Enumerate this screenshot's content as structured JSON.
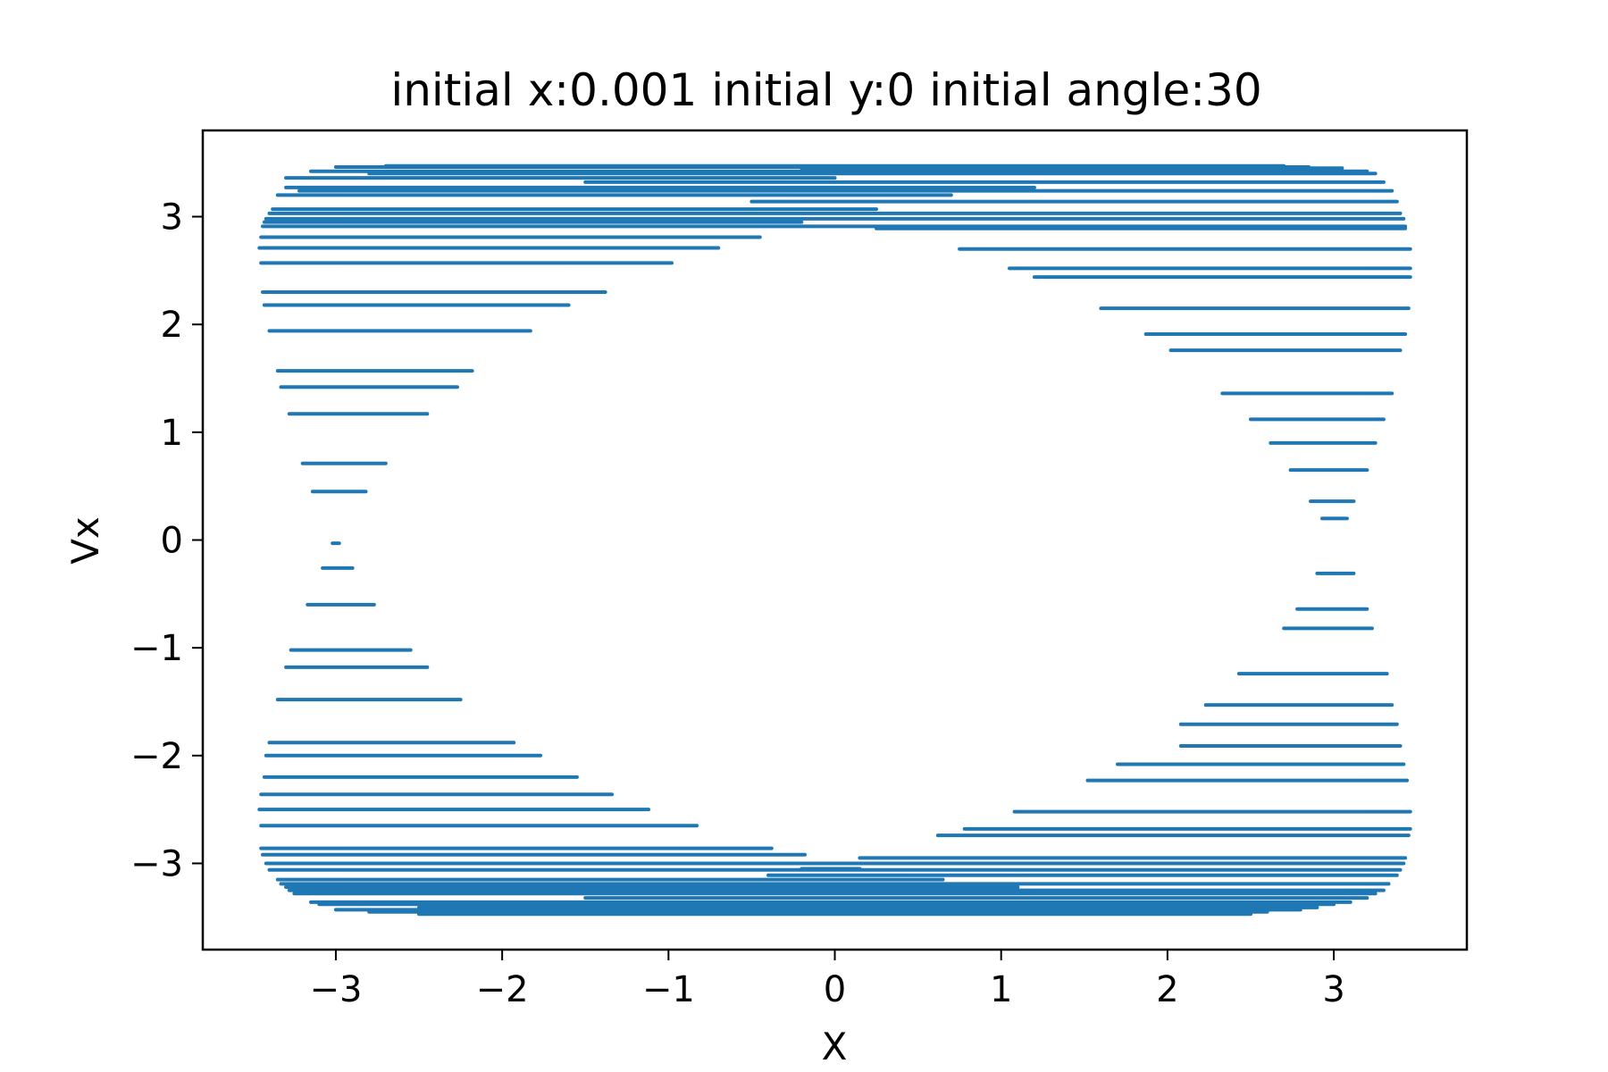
{
  "chart_data": {
    "type": "scatter",
    "title": "initial x:0.001  initial y:0 initial angle:30",
    "xlabel": "X",
    "ylabel": "Vx",
    "xlim": [
      -3.8,
      3.8
    ],
    "ylim": [
      -3.8,
      3.8
    ],
    "xticks": [
      -3,
      -2,
      -1,
      0,
      1,
      2,
      3
    ],
    "xtick_labels": [
      "−3",
      "−2",
      "−1",
      "0",
      "1",
      "2",
      "3"
    ],
    "yticks": [
      -3,
      -2,
      -1,
      0,
      1,
      2,
      3
    ],
    "ytick_labels": [
      "−3",
      "−2",
      "−1",
      "0",
      "1",
      "2",
      "3"
    ],
    "grid": false,
    "legend": "none",
    "series_color": "#1f77b4",
    "segments": [
      {
        "vx": 3.47,
        "x_start": -2.7,
        "x_end": 2.7
      },
      {
        "vx": 3.46,
        "x_start": -3.0,
        "x_end": 2.85
      },
      {
        "vx": 3.45,
        "x_start": -0.2,
        "x_end": 3.05
      },
      {
        "vx": 3.42,
        "x_start": -3.15,
        "x_end": 3.2
      },
      {
        "vx": 3.4,
        "x_start": -2.8,
        "x_end": 3.25
      },
      {
        "vx": 3.36,
        "x_start": -3.3,
        "x_end": 0.0
      },
      {
        "vx": 3.32,
        "x_start": -1.5,
        "x_end": 3.3
      },
      {
        "vx": 3.27,
        "x_start": -3.3,
        "x_end": 1.2
      },
      {
        "vx": 3.24,
        "x_start": -3.22,
        "x_end": 3.35
      },
      {
        "vx": 3.2,
        "x_start": -3.35,
        "x_end": 0.7
      },
      {
        "vx": 3.14,
        "x_start": -0.5,
        "x_end": 3.38
      },
      {
        "vx": 3.07,
        "x_start": -3.38,
        "x_end": 0.25
      },
      {
        "vx": 3.03,
        "x_start": -3.4,
        "x_end": 3.4
      },
      {
        "vx": 2.98,
        "x_start": -3.42,
        "x_end": 3.42
      },
      {
        "vx": 2.95,
        "x_start": -3.43,
        "x_end": -0.2
      },
      {
        "vx": 2.91,
        "x_start": -3.44,
        "x_end": 3.43
      },
      {
        "vx": 2.89,
        "x_start": 0.25,
        "x_end": 3.43
      },
      {
        "vx": 2.81,
        "x_start": -3.45,
        "x_end": -0.45
      },
      {
        "vx": 2.71,
        "x_start": -3.46,
        "x_end": -0.7
      },
      {
        "vx": 2.7,
        "x_start": 0.75,
        "x_end": 3.46
      },
      {
        "vx": 2.57,
        "x_start": -3.45,
        "x_end": -0.98
      },
      {
        "vx": 2.52,
        "x_start": 1.05,
        "x_end": 3.46
      },
      {
        "vx": 2.44,
        "x_start": 1.2,
        "x_end": 3.46
      },
      {
        "vx": 2.3,
        "x_start": -3.44,
        "x_end": -1.38
      },
      {
        "vx": 2.18,
        "x_start": -3.43,
        "x_end": -1.6
      },
      {
        "vx": 2.15,
        "x_start": 1.6,
        "x_end": 3.45
      },
      {
        "vx": 1.94,
        "x_start": -3.4,
        "x_end": -1.83
      },
      {
        "vx": 1.91,
        "x_start": 1.87,
        "x_end": 3.43
      },
      {
        "vx": 1.76,
        "x_start": 2.02,
        "x_end": 3.4
      },
      {
        "vx": 1.57,
        "x_start": -3.35,
        "x_end": -2.18
      },
      {
        "vx": 1.42,
        "x_start": -3.33,
        "x_end": -2.27
      },
      {
        "vx": 1.36,
        "x_start": 2.33,
        "x_end": 3.35
      },
      {
        "vx": 1.17,
        "x_start": -3.28,
        "x_end": -2.45
      },
      {
        "vx": 1.12,
        "x_start": 2.5,
        "x_end": 3.3
      },
      {
        "vx": 0.9,
        "x_start": 2.62,
        "x_end": 3.25
      },
      {
        "vx": 0.71,
        "x_start": -3.2,
        "x_end": -2.7
      },
      {
        "vx": 0.65,
        "x_start": 2.74,
        "x_end": 3.2
      },
      {
        "vx": 0.45,
        "x_start": -3.14,
        "x_end": -2.82
      },
      {
        "vx": 0.36,
        "x_start": 2.86,
        "x_end": 3.12
      },
      {
        "vx": 0.2,
        "x_start": 2.93,
        "x_end": 3.08
      },
      {
        "vx": -0.03,
        "x_start": -3.02,
        "x_end": -2.98
      },
      {
        "vx": -0.26,
        "x_start": -3.08,
        "x_end": -2.9
      },
      {
        "vx": -0.31,
        "x_start": 2.9,
        "x_end": 3.12
      },
      {
        "vx": -0.6,
        "x_start": -3.17,
        "x_end": -2.77
      },
      {
        "vx": -0.64,
        "x_start": 2.78,
        "x_end": 3.2
      },
      {
        "vx": -0.82,
        "x_start": 2.7,
        "x_end": 3.23
      },
      {
        "vx": -1.02,
        "x_start": -3.27,
        "x_end": -2.55
      },
      {
        "vx": -1.18,
        "x_start": -3.3,
        "x_end": -2.45
      },
      {
        "vx": -1.24,
        "x_start": 2.43,
        "x_end": 3.32
      },
      {
        "vx": -1.48,
        "x_start": -3.35,
        "x_end": -2.25
      },
      {
        "vx": -1.53,
        "x_start": 2.23,
        "x_end": 3.35
      },
      {
        "vx": -1.71,
        "x_start": 2.08,
        "x_end": 3.38
      },
      {
        "vx": -1.88,
        "x_start": -3.4,
        "x_end": -1.93
      },
      {
        "vx": -1.91,
        "x_start": 2.08,
        "x_end": 3.4
      },
      {
        "vx": -2.0,
        "x_start": -3.42,
        "x_end": -1.77
      },
      {
        "vx": -2.08,
        "x_start": 1.7,
        "x_end": 3.42
      },
      {
        "vx": -2.2,
        "x_start": -3.43,
        "x_end": -1.55
      },
      {
        "vx": -2.23,
        "x_start": 1.52,
        "x_end": 3.44
      },
      {
        "vx": -2.36,
        "x_start": -3.45,
        "x_end": -1.34
      },
      {
        "vx": -2.5,
        "x_start": -3.46,
        "x_end": -1.12
      },
      {
        "vx": -2.52,
        "x_start": 1.08,
        "x_end": 3.46
      },
      {
        "vx": -2.65,
        "x_start": -3.45,
        "x_end": -0.83
      },
      {
        "vx": -2.68,
        "x_start": 0.78,
        "x_end": 3.46
      },
      {
        "vx": -2.74,
        "x_start": 0.62,
        "x_end": 3.45
      },
      {
        "vx": -2.86,
        "x_start": -3.45,
        "x_end": -0.38
      },
      {
        "vx": -2.92,
        "x_start": -3.44,
        "x_end": -0.18
      },
      {
        "vx": -2.95,
        "x_start": 0.15,
        "x_end": 3.43
      },
      {
        "vx": -3.0,
        "x_start": -3.42,
        "x_end": 3.42
      },
      {
        "vx": -3.05,
        "x_start": -0.2,
        "x_end": 0.15
      },
      {
        "vx": -3.06,
        "x_start": -3.4,
        "x_end": 3.4
      },
      {
        "vx": -3.11,
        "x_start": -0.4,
        "x_end": 3.38
      },
      {
        "vx": -3.15,
        "x_start": -3.35,
        "x_end": 0.65
      },
      {
        "vx": -3.19,
        "x_start": -3.33,
        "x_end": 3.33
      },
      {
        "vx": -3.22,
        "x_start": -3.3,
        "x_end": 1.1
      },
      {
        "vx": -3.25,
        "x_start": -3.28,
        "x_end": 3.3
      },
      {
        "vx": -3.28,
        "x_start": -3.25,
        "x_end": 3.25
      },
      {
        "vx": -3.32,
        "x_start": -1.5,
        "x_end": 3.2
      },
      {
        "vx": -3.36,
        "x_start": -3.15,
        "x_end": 3.1
      },
      {
        "vx": -3.38,
        "x_start": -3.1,
        "x_end": 3.0
      },
      {
        "vx": -3.41,
        "x_start": -2.5,
        "x_end": 2.9
      },
      {
        "vx": -3.43,
        "x_start": -3.0,
        "x_end": 2.8
      },
      {
        "vx": -3.45,
        "x_start": -2.8,
        "x_end": 2.6
      },
      {
        "vx": -3.47,
        "x_start": -2.5,
        "x_end": 2.5
      }
    ]
  }
}
